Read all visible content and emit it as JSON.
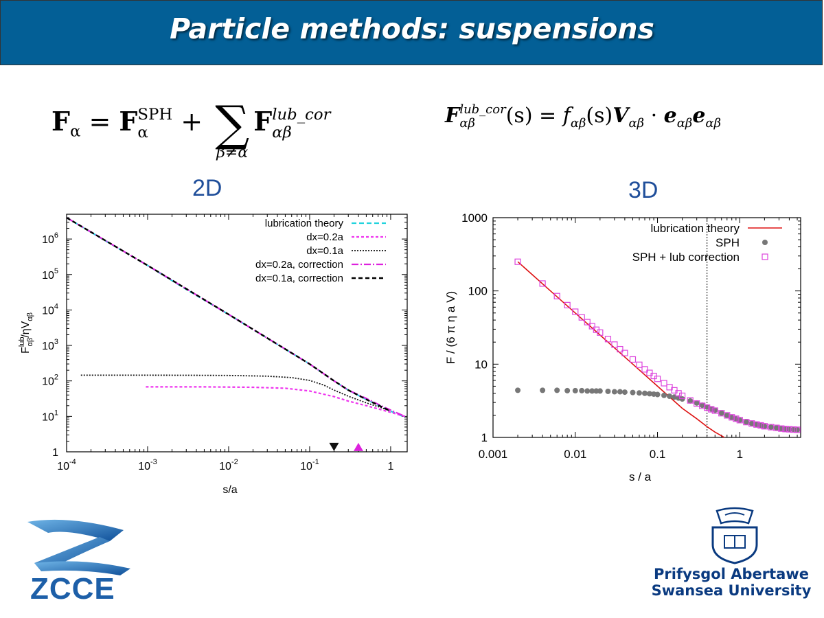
{
  "slide": {
    "title": "Particle methods: suspensions",
    "label_2d": "2D",
    "label_3d": "3D",
    "equation1": {
      "lhs": "F",
      "lhs_sub": "α",
      "eq": " = ",
      "t1": "F",
      "t1_sup": "SPH",
      "t1_sub": "α",
      "plus": " + ",
      "sum_sub": "β≠α",
      "t2": "F",
      "t2_sup": "lub_cor",
      "t2_sub": "αβ"
    },
    "equation2": {
      "lhs": "F",
      "lhs_sup": "lub_cor",
      "lhs_sub": "αβ",
      "arg": "(s) = ",
      "f": "f",
      "f_sub": "αβ",
      "f_arg": "(s)",
      "V": "V",
      "V_sub": "αβ",
      "dot": " · ",
      "e1": "e",
      "e1_sub": "αβ",
      "e2": "e",
      "e2_sub": "αβ"
    },
    "logos": {
      "zcce": "ZCCE",
      "university_line1": "Prifysgol Abertawe",
      "university_line2": "Swansea University"
    }
  },
  "chart_data": [
    {
      "type": "line",
      "panel": "2D",
      "xlabel": "s/a",
      "ylabel": "F",
      "ylabel_sup": "lub",
      "ylabel_sub": "αβ",
      "ylabel_rest": "/ηV",
      "ylabel_rest_sub": "αβ",
      "xscale": "log",
      "yscale": "log",
      "xlim": [
        0.0001,
        1.6
      ],
      "ylim": [
        1,
        5000000
      ],
      "xticks": [
        {
          "value": 0.0001,
          "base": "10",
          "exp": "-4"
        },
        {
          "value": 0.001,
          "base": "10",
          "exp": "-3"
        },
        {
          "value": 0.01,
          "base": "10",
          "exp": "-2"
        },
        {
          "value": 0.1,
          "base": "10",
          "exp": "-1"
        },
        {
          "value": 1,
          "base": "1",
          "exp": ""
        }
      ],
      "yticks": [
        {
          "value": 1,
          "base": "1",
          "exp": ""
        },
        {
          "value": 10,
          "base": "10",
          "exp": "1"
        },
        {
          "value": 100,
          "base": "10",
          "exp": "2"
        },
        {
          "value": 1000,
          "base": "10",
          "exp": "3"
        },
        {
          "value": 10000,
          "base": "10",
          "exp": "4"
        },
        {
          "value": 100000,
          "base": "10",
          "exp": "5"
        },
        {
          "value": 1000000,
          "base": "10",
          "exp": "6"
        }
      ],
      "legend_position": "top-right",
      "series": [
        {
          "name": "lubrication theory",
          "color": "#22d3dd",
          "dash": "7,4",
          "width": 2.2,
          "x": [
            0.0001,
            0.0003,
            0.001,
            0.003,
            0.01,
            0.03,
            0.1,
            0.2,
            0.3,
            0.5,
            0.8,
            1.0,
            1.5
          ],
          "y": [
            4000000,
            900000,
            180000,
            38000,
            7500,
            1600,
            300,
            100,
            55,
            30,
            18,
            14,
            9.5
          ]
        },
        {
          "name": "dx=0.2a",
          "color": "#ee33ee",
          "dash": "4,3",
          "width": 2.2,
          "x": [
            0.00095,
            0.002,
            0.005,
            0.01,
            0.02,
            0.05,
            0.1,
            0.2,
            0.3,
            0.5,
            0.8,
            1.0,
            1.5
          ],
          "y": [
            68,
            68,
            68,
            67,
            66,
            62,
            52,
            36,
            27,
            20,
            15,
            13,
            10
          ]
        },
        {
          "name": "dx=0.1a",
          "color": "#111111",
          "dash": "2,2",
          "width": 1.8,
          "x": [
            0.00015,
            0.0005,
            0.001,
            0.003,
            0.01,
            0.03,
            0.06,
            0.1,
            0.15,
            0.2,
            0.3,
            0.5,
            0.8,
            1.0
          ],
          "y": [
            145,
            145,
            145,
            144,
            142,
            136,
            124,
            103,
            76,
            55,
            37,
            24,
            17,
            14
          ]
        },
        {
          "name": "dx=0.2a, correction",
          "color": "#dd22dd",
          "dash": "10,3,2,3",
          "width": 2.2,
          "x": [
            0.0001,
            0.001,
            0.01,
            0.1,
            0.2,
            0.3,
            0.5,
            0.8,
            1.0,
            1.5
          ],
          "y": [
            4000000,
            180000,
            7500,
            300,
            100,
            55,
            32,
            19,
            15,
            10
          ]
        },
        {
          "name": "dx=0.1a, correction",
          "color": "#000000",
          "dash": "6,4",
          "width": 2.4,
          "x": [
            0.0001,
            0.001,
            0.01,
            0.1,
            0.2,
            0.3,
            0.5,
            0.8,
            1.0
          ],
          "y": [
            4000000,
            180000,
            7500,
            300,
            100,
            55,
            30,
            18,
            14
          ]
        }
      ],
      "markers": [
        {
          "name": "dx=0.1a marker",
          "shape": "triangle-down",
          "color": "#111111",
          "x": 0.2,
          "y": 1.05
        },
        {
          "name": "dx=0.2a marker",
          "shape": "triangle-up",
          "color": "#dd22dd",
          "x": 0.4,
          "y": 1.05
        }
      ]
    },
    {
      "type": "scatter",
      "panel": "3D",
      "xlabel": "s / a",
      "ylabel": "F / (6 π η a V)",
      "xscale": "log",
      "yscale": "log",
      "xlim": [
        0.001,
        5.5
      ],
      "ylim": [
        1,
        1000
      ],
      "xticks": [
        {
          "value": 0.001,
          "label": "0.001"
        },
        {
          "value": 0.01,
          "label": "0.01"
        },
        {
          "value": 0.1,
          "label": "0.1"
        },
        {
          "value": 1,
          "label": "1"
        }
      ],
      "yticks": [
        {
          "value": 1,
          "label": "1"
        },
        {
          "value": 10,
          "label": "10"
        },
        {
          "value": 100,
          "label": "100"
        },
        {
          "value": 1000,
          "label": "1000"
        }
      ],
      "vline": 0.4,
      "legend_position": "top-right",
      "lubrication_theory": {
        "name": "lubrication theory",
        "color": "#dd1111",
        "x": [
          0.002,
          0.005,
          0.01,
          0.02,
          0.05,
          0.1,
          0.2,
          0.3,
          0.4,
          0.5,
          0.6,
          0.7
        ],
        "y": [
          250,
          100,
          50,
          25,
          10,
          5,
          2.5,
          1.8,
          1.4,
          1.18,
          1.05,
          0.95
        ]
      },
      "sph": {
        "name": "SPH",
        "color": "#777777",
        "x": [
          0.002,
          0.004,
          0.006,
          0.008,
          0.01,
          0.012,
          0.014,
          0.016,
          0.018,
          0.02,
          0.025,
          0.03,
          0.035,
          0.04,
          0.05,
          0.06,
          0.07,
          0.08,
          0.09,
          0.1,
          0.12,
          0.14,
          0.16,
          0.18,
          0.2,
          0.25,
          0.3,
          0.35,
          0.4,
          0.45,
          0.5,
          0.6,
          0.7,
          0.8,
          0.9,
          1.0,
          1.2,
          1.4,
          1.6,
          1.8,
          2.0,
          2.4,
          2.8,
          3.2,
          3.6,
          4.0,
          4.5,
          5.0
        ],
        "y": [
          4.4,
          4.4,
          4.4,
          4.35,
          4.35,
          4.35,
          4.3,
          4.3,
          4.3,
          4.3,
          4.25,
          4.2,
          4.2,
          4.15,
          4.1,
          4.05,
          4.0,
          3.95,
          3.9,
          3.85,
          3.75,
          3.65,
          3.55,
          3.45,
          3.35,
          3.15,
          2.95,
          2.75,
          2.6,
          2.45,
          2.35,
          2.15,
          2.0,
          1.88,
          1.8,
          1.72,
          1.62,
          1.55,
          1.5,
          1.46,
          1.42,
          1.38,
          1.35,
          1.32,
          1.3,
          1.29,
          1.28,
          1.27
        ]
      },
      "sph_lub": {
        "name": "SPH + lub correction",
        "color": "#dd44dd",
        "x": [
          0.002,
          0.004,
          0.006,
          0.008,
          0.01,
          0.012,
          0.014,
          0.016,
          0.018,
          0.02,
          0.025,
          0.03,
          0.035,
          0.04,
          0.05,
          0.06,
          0.07,
          0.08,
          0.09,
          0.1,
          0.12,
          0.14,
          0.16,
          0.18,
          0.2,
          0.25,
          0.3,
          0.35,
          0.4,
          0.45,
          0.5,
          0.6,
          0.7,
          0.8,
          0.9,
          1.0,
          1.2,
          1.4,
          1.6,
          1.8,
          2.0,
          2.4,
          2.8,
          3.2,
          3.6,
          4.0,
          4.5,
          5.0
        ],
        "y": [
          250,
          126,
          85,
          64,
          52,
          43.5,
          37.5,
          33,
          29.5,
          27,
          22,
          18.5,
          16,
          14.2,
          11.6,
          9.8,
          8.5,
          7.6,
          6.9,
          6.3,
          5.5,
          4.85,
          4.4,
          4.0,
          3.7,
          3.2,
          2.9,
          2.7,
          2.55,
          2.42,
          2.32,
          2.14,
          2.0,
          1.88,
          1.8,
          1.72,
          1.62,
          1.55,
          1.5,
          1.46,
          1.42,
          1.38,
          1.35,
          1.32,
          1.3,
          1.29,
          1.28,
          1.27
        ]
      }
    }
  ]
}
